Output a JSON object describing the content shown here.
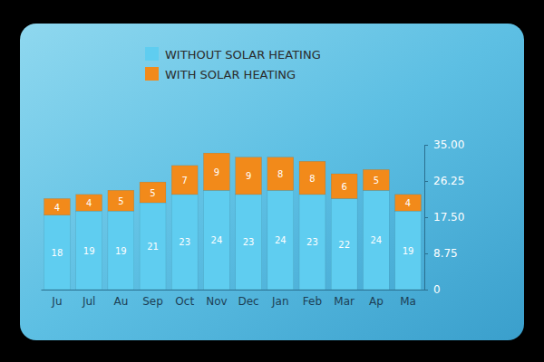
{
  "chart_data": {
    "type": "bar",
    "stacked": true,
    "data_labels": true,
    "legend": "top-left",
    "grid": false,
    "categories": [
      "Ju",
      "Jul",
      "Au",
      "Sep",
      "Oct",
      "Nov",
      "Dec",
      "Jan",
      "Feb",
      "Mar",
      "Ap",
      "Ma"
    ],
    "series": [
      {
        "name": "WITHOUT SOLAR HEATING",
        "color": "#5fcdf0",
        "values": [
          18,
          19,
          19,
          21,
          23,
          24,
          23,
          24,
          23,
          22,
          24,
          19
        ]
      },
      {
        "name": "WITH SOLAR HEATING",
        "color": "#f28a1a",
        "values": [
          4,
          4,
          5,
          5,
          7,
          9,
          9,
          8,
          8,
          6,
          5,
          4
        ]
      }
    ],
    "ylim": [
      0,
      35
    ],
    "yticks": [
      0,
      8.75,
      {
        "value": 17.5,
        "label": "17.50"
      },
      26.25,
      {
        "value": 35,
        "label": "35.00"
      }
    ]
  }
}
